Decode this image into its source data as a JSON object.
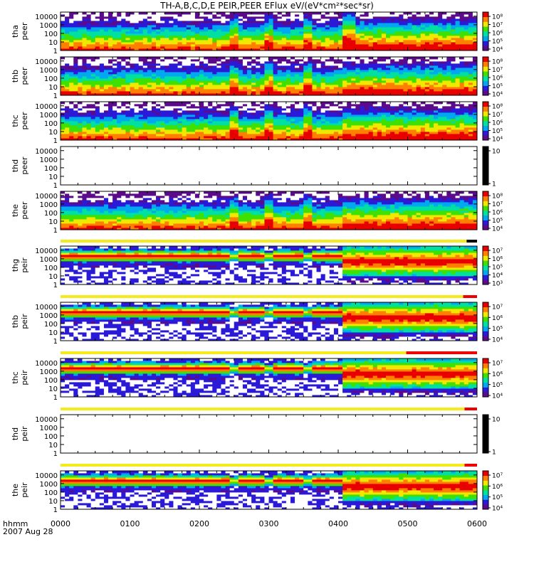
{
  "chart_data": {
    "type": "heatmap",
    "title": "TH-A,B,C,D,E PEIR,PEER EFlux eV/(eV*cm²*sec*sr)",
    "x": {
      "tick_labels": [
        "0000",
        "0100",
        "0200",
        "0300",
        "0400",
        "0500",
        "0600"
      ],
      "range_hours": [
        0,
        6
      ],
      "label_top": "hhmm",
      "label_bottom": "2007 Aug 28"
    },
    "y_tick_labels": [
      "10000",
      "1000",
      "100",
      "10",
      "1"
    ],
    "y_range_eV": [
      1,
      30000
    ],
    "panels": [
      {
        "probe": "tha",
        "species": "peer",
        "data": true,
        "cbar_log_range": [
          4,
          8
        ],
        "cbar_labels": [
          "10⁸",
          "10⁷",
          "10⁶",
          "10⁵",
          "10⁴"
        ]
      },
      {
        "probe": "thb",
        "species": "peer",
        "data": true,
        "cbar_log_range": [
          4,
          8
        ],
        "cbar_labels": [
          "10⁸",
          "10⁷",
          "10⁶",
          "10⁵",
          "10⁴"
        ]
      },
      {
        "probe": "thc",
        "species": "peer",
        "data": true,
        "cbar_log_range": [
          4,
          8
        ],
        "cbar_labels": [
          "10⁸",
          "10⁷",
          "10⁶",
          "10⁵",
          "10⁴"
        ]
      },
      {
        "probe": "thd",
        "species": "peer",
        "data": false,
        "cbar_labels": [
          "10",
          "1"
        ]
      },
      {
        "probe": "the",
        "species": "peer",
        "data": true,
        "cbar_log_range": [
          4,
          8
        ],
        "cbar_labels": [
          "10⁸",
          "10⁷",
          "10⁶",
          "10⁵",
          "10⁴"
        ]
      },
      {
        "probe": "thg",
        "species": "peir",
        "data": true,
        "cbar_log_range": [
          3,
          7
        ],
        "cbar_labels": [
          "10⁷",
          "10⁶",
          "10⁵",
          "10⁴",
          "10³"
        ]
      },
      {
        "probe": "thb",
        "species": "peir",
        "data": true,
        "cbar_log_range": [
          4,
          7
        ],
        "cbar_labels": [
          "10⁷",
          "10⁶",
          "10⁵",
          "10⁴"
        ]
      },
      {
        "probe": "thc",
        "species": "peir",
        "data": true,
        "cbar_log_range": [
          4,
          7
        ],
        "cbar_labels": [
          "10⁷",
          "10⁶",
          "10⁵",
          "10⁴"
        ]
      },
      {
        "probe": "thd",
        "species": "peir",
        "data": false,
        "cbar_labels": [
          "10",
          "1"
        ]
      },
      {
        "probe": "the",
        "species": "peir",
        "data": true,
        "cbar_log_range": [
          4,
          7
        ],
        "cbar_labels": [
          "10⁷",
          "10⁶",
          "10⁵",
          "10⁴"
        ]
      }
    ],
    "mode_bars": [
      {
        "after_panel": 4,
        "segments": [
          {
            "from_h": 0,
            "to_h": 5.85,
            "color": "#f5ea1a"
          },
          {
            "from_h": 5.85,
            "to_h": 6.0,
            "color": "#000000"
          }
        ]
      },
      {
        "after_panel": 5,
        "segments": [
          {
            "from_h": 0,
            "to_h": 5.8,
            "color": "#f5ea1a"
          },
          {
            "from_h": 5.8,
            "to_h": 6.0,
            "color": "#ee0000"
          }
        ]
      },
      {
        "after_panel": 6,
        "segments": [
          {
            "from_h": 0,
            "to_h": 4.98,
            "color": "#f5ea1a"
          },
          {
            "from_h": 4.98,
            "to_h": 6.0,
            "color": "#ee0000"
          }
        ]
      },
      {
        "after_panel": 7,
        "segments": [
          {
            "from_h": 0,
            "to_h": 5.82,
            "color": "#f5ea1a"
          },
          {
            "from_h": 5.82,
            "to_h": 6.0,
            "color": "#ee0000"
          }
        ]
      },
      {
        "after_panel": 8,
        "segments": [
          {
            "from_h": 0,
            "to_h": 5.82,
            "color": "#f5ea1a"
          },
          {
            "from_h": 5.82,
            "to_h": 6.0,
            "color": "#ee0000"
          }
        ]
      }
    ],
    "colors": {
      "text": "#000000",
      "colormap": [
        "#5a0a8a",
        "#2a1ad8",
        "#00a8f0",
        "#00e0a0",
        "#40e000",
        "#f0e800",
        "#ff8000",
        "#e80000"
      ]
    }
  }
}
